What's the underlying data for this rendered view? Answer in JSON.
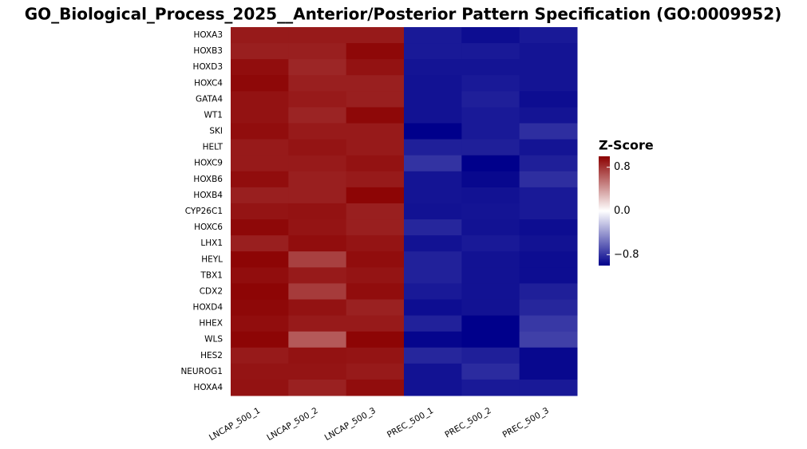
{
  "chart_data": {
    "type": "heatmap",
    "title": "GO_Biological_Process_2025__Anterior/Posterior Pattern Specification (GO:0009952)",
    "columns": [
      "LNCAP_500_1",
      "LNCAP_500_2",
      "LNCAP_500_3",
      "PREC_500_1",
      "PREC_500_2",
      "PREC_500_3"
    ],
    "rows": [
      "HOXA3",
      "HOXB3",
      "HOXD3",
      "HOXC4",
      "GATA4",
      "WT1",
      "SKI",
      "HELT",
      "HOXC9",
      "HOXB6",
      "HOXB4",
      "CYP26C1",
      "HOXC6",
      "LHX1",
      "HEYL",
      "TBX1",
      "CDX2",
      "HOXD4",
      "HHEX",
      "WLS",
      "HES2",
      "NEUROG1",
      "HOXA4"
    ],
    "values": [
      [
        0.9,
        0.9,
        0.9,
        -0.9,
        -0.95,
        -0.9
      ],
      [
        0.88,
        0.88,
        0.97,
        -0.9,
        -0.9,
        -0.92
      ],
      [
        0.95,
        0.85,
        0.93,
        -0.92,
        -0.92,
        -0.92
      ],
      [
        0.97,
        0.88,
        0.88,
        -0.93,
        -0.9,
        -0.92
      ],
      [
        0.93,
        0.9,
        0.88,
        -0.93,
        -0.88,
        -0.95
      ],
      [
        0.93,
        0.86,
        0.97,
        -0.93,
        -0.9,
        -0.92
      ],
      [
        0.95,
        0.9,
        0.9,
        -1.0,
        -0.9,
        -0.82
      ],
      [
        0.9,
        0.92,
        0.9,
        -0.88,
        -0.88,
        -0.92
      ],
      [
        0.9,
        0.9,
        0.93,
        -0.8,
        -1.0,
        -0.88
      ],
      [
        0.95,
        0.88,
        0.9,
        -0.92,
        -0.97,
        -0.82
      ],
      [
        0.88,
        0.88,
        0.98,
        -0.92,
        -0.93,
        -0.9
      ],
      [
        0.92,
        0.93,
        0.88,
        -0.93,
        -0.92,
        -0.9
      ],
      [
        0.97,
        0.92,
        0.88,
        -0.85,
        -0.93,
        -0.95
      ],
      [
        0.88,
        0.95,
        0.92,
        -0.93,
        -0.9,
        -0.93
      ],
      [
        0.98,
        0.75,
        0.95,
        -0.87,
        -0.93,
        -0.95
      ],
      [
        0.95,
        0.9,
        0.92,
        -0.87,
        -0.93,
        -0.95
      ],
      [
        0.98,
        0.77,
        0.95,
        -0.9,
        -0.93,
        -0.88
      ],
      [
        0.97,
        0.93,
        0.87,
        -0.95,
        -0.93,
        -0.85
      ],
      [
        0.95,
        0.9,
        0.9,
        -0.87,
        -1.0,
        -0.78
      ],
      [
        0.98,
        0.65,
        0.98,
        -0.98,
        -1.0,
        -0.75
      ],
      [
        0.9,
        0.93,
        0.92,
        -0.85,
        -0.88,
        -0.97
      ],
      [
        0.92,
        0.92,
        0.9,
        -0.93,
        -0.83,
        -0.97
      ],
      [
        0.93,
        0.87,
        0.95,
        -0.93,
        -0.9,
        -0.9
      ]
    ],
    "colorbar_title": "Z-Score",
    "zlim": [
      -1,
      1
    ],
    "zticks": [
      {
        "value": -0.8,
        "label": "−0.8"
      },
      {
        "value": 0,
        "label": "0.0"
      },
      0.8
    ],
    "colors": [
      "#00008b",
      "#ffffff",
      "#8b0000"
    ]
  }
}
